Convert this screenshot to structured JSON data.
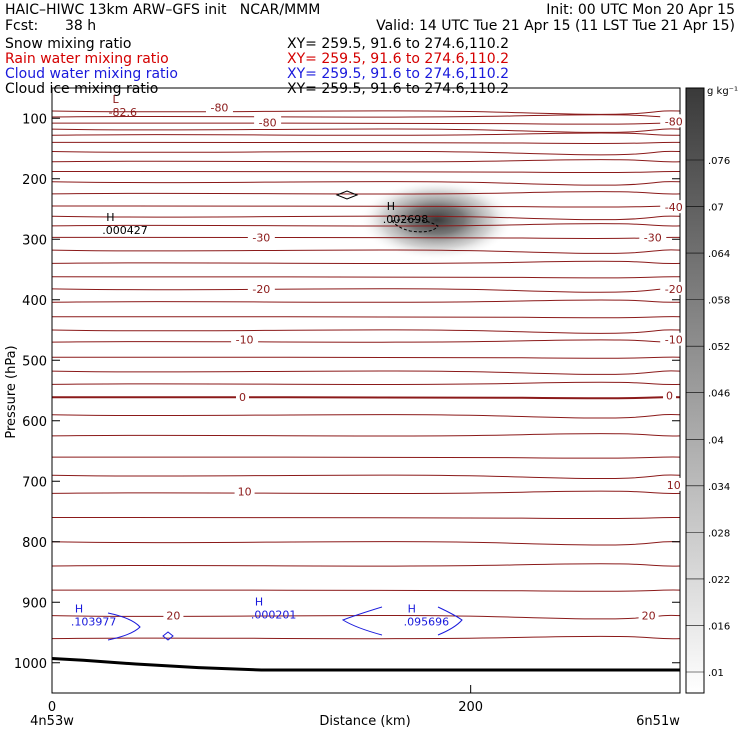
{
  "header": {
    "title_left": "HAIC–HIWC 13km ARW–GFS init   NCAR/MMM",
    "init": "Init: 00 UTC Mon 20 Apr 15",
    "fcst_label": "Fcst:",
    "fcst_value": "38 h",
    "valid": "Valid: 14 UTC Tue 21 Apr 15 (11 LST Tue 21 Apr 15)",
    "fields": [
      {
        "name": "Snow mixing ratio",
        "xy": "XY= 259.5, 91.6 to 274.6,110.2",
        "color": "#000000"
      },
      {
        "name": "Rain water mixing ratio",
        "xy": "XY= 259.5, 91.6 to 274.6,110.2",
        "color": "#d40000"
      },
      {
        "name": "Cloud water mixing ratio",
        "xy": "XY= 259.5, 91.6 to 274.6,110.2",
        "color": "#1a1adc"
      },
      {
        "name": "Cloud ice mixing ratio",
        "xy": "XY= 259.5, 91.6 to 274.6,110.2",
        "color": "#000000"
      }
    ]
  },
  "chart_data": {
    "type": "cross-section",
    "xlabel": "Distance (km)",
    "ylabel": "Pressure (hPa)",
    "xlim": [
      0,
      300
    ],
    "ylim": [
      1050,
      50
    ],
    "xticks": [
      0,
      200
    ],
    "yticks": [
      100,
      200,
      300,
      400,
      500,
      600,
      700,
      800,
      900,
      1000
    ],
    "x_left_label": "4n53w",
    "x_right_label": "6n51w",
    "temperature_labels": [
      {
        "text": "-80",
        "x": 80,
        "p": 82
      },
      {
        "text": "-80",
        "x": 103,
        "p": 107
      },
      {
        "text": "-80",
        "x": 297,
        "p": 105
      },
      {
        "text": "-40",
        "x": 297,
        "p": 247
      },
      {
        "text": "-30",
        "x": 100,
        "p": 297
      },
      {
        "text": "-30",
        "x": 287,
        "p": 297
      },
      {
        "text": "-20",
        "x": 100,
        "p": 382
      },
      {
        "text": "-20",
        "x": 297,
        "p": 382
      },
      {
        "text": "-10",
        "x": 92,
        "p": 466
      },
      {
        "text": "-10",
        "x": 297,
        "p": 466
      },
      {
        "text": "0",
        "x": 91,
        "p": 561
      },
      {
        "text": "0",
        "x": 295,
        "p": 558
      },
      {
        "text": "10",
        "x": 92,
        "p": 717
      },
      {
        "text": "10",
        "x": 297,
        "p": 706
      },
      {
        "text": "20",
        "x": 58,
        "p": 922
      },
      {
        "text": "20",
        "x": 285,
        "p": 922
      }
    ],
    "extrema_labels": [
      {
        "marker": "L",
        "value": "-82.6",
        "x": 27,
        "p": 88,
        "color": "#8b1a1a"
      },
      {
        "marker": "H",
        "value": ".000427",
        "x": 24,
        "p": 283,
        "color": "#000000"
      },
      {
        "marker": "H",
        "value": ".002698",
        "x": 158,
        "p": 265,
        "color": "#000000"
      },
      {
        "marker": "H",
        "value": ".103977",
        "x": 9,
        "p": 930,
        "color": "#1a1adc"
      },
      {
        "marker": "H",
        "value": ".000201",
        "x": 95,
        "p": 919,
        "color": "#1a1adc"
      },
      {
        "marker": "H",
        "value": ".095696",
        "x": 168,
        "p": 930,
        "color": "#1a1adc"
      }
    ],
    "snow_maximum": {
      "x": 180,
      "p": 278,
      "value": 0.002698
    },
    "colorbar": {
      "unit": "g kg⁻¹",
      "levels": [
        ".01",
        ".016",
        ".022",
        ".028",
        ".034",
        ".04",
        ".046",
        ".052",
        ".058",
        ".064",
        ".07",
        ".076"
      ]
    }
  }
}
